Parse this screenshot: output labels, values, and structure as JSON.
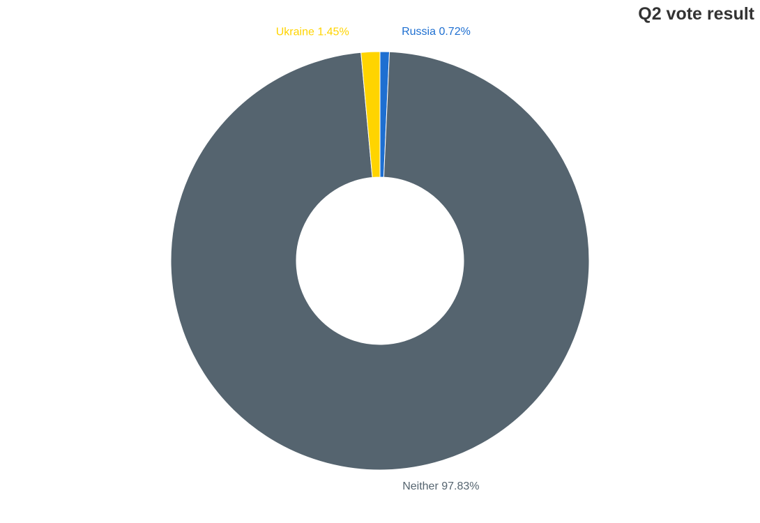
{
  "chart_data": {
    "type": "pie",
    "title": "Q2 vote result",
    "donut": true,
    "slices": [
      {
        "name": "Russia",
        "value": 0.72,
        "label": "Russia 0.72%",
        "color": "#1e6fd1"
      },
      {
        "name": "Neither",
        "value": 97.83,
        "label": "Neither 97.83%",
        "color": "#55646f"
      },
      {
        "name": "Ukraine",
        "value": 1.45,
        "label": "Ukraine 1.45%",
        "color": "#ffd400"
      }
    ],
    "legend": "none"
  }
}
